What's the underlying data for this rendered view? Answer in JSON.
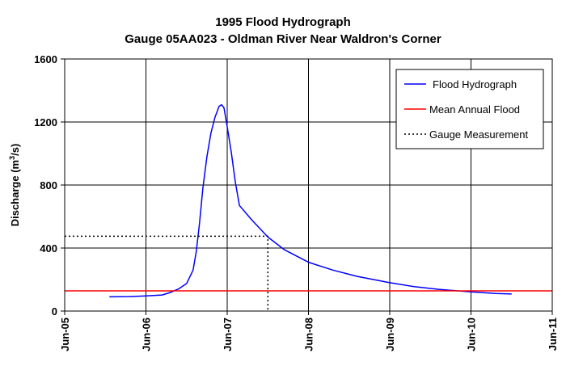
{
  "chart_data": {
    "type": "line",
    "title": "1995 Flood Hydrograph",
    "subtitle": "Gauge 05AA023 - Oldman River Near Waldron's Corner",
    "ylabel_main": "Discharge (m",
    "ylabel_sup": "3",
    "ylabel_tail": "/s)",
    "xlabel": "",
    "x_ticks": [
      "Jun-05",
      "Jun-06",
      "Jun-07",
      "Jun-08",
      "Jun-09",
      "Jun-10",
      "Jun-11"
    ],
    "y_ticks": [
      "0",
      "400",
      "800",
      "1200",
      "1600"
    ],
    "xlim": [
      5,
      11
    ],
    "ylim": [
      0,
      1600
    ],
    "grid": true,
    "legend_position": "top-right",
    "series": [
      {
        "name": "Flood Hydrograph",
        "color": "#0000ff",
        "style": "solid",
        "points": [
          [
            5.55,
            90
          ],
          [
            5.8,
            92
          ],
          [
            6.0,
            96
          ],
          [
            6.2,
            102
          ],
          [
            6.3,
            118
          ],
          [
            6.4,
            140
          ],
          [
            6.5,
            175
          ],
          [
            6.58,
            260
          ],
          [
            6.62,
            380
          ],
          [
            6.66,
            560
          ],
          [
            6.7,
            780
          ],
          [
            6.75,
            980
          ],
          [
            6.8,
            1130
          ],
          [
            6.85,
            1230
          ],
          [
            6.9,
            1300
          ],
          [
            6.93,
            1310
          ],
          [
            6.96,
            1290
          ],
          [
            7.0,
            1170
          ],
          [
            7.05,
            1010
          ],
          [
            7.1,
            820
          ],
          [
            7.15,
            670
          ],
          [
            7.3,
            580
          ],
          [
            7.5,
            470
          ],
          [
            7.7,
            390
          ],
          [
            8.0,
            310
          ],
          [
            8.3,
            260
          ],
          [
            8.6,
            220
          ],
          [
            9.0,
            180
          ],
          [
            9.3,
            155
          ],
          [
            9.6,
            138
          ],
          [
            10.0,
            122
          ],
          [
            10.3,
            112
          ],
          [
            10.5,
            108
          ]
        ]
      },
      {
        "name": "Mean Annual Flood",
        "color": "#ff0000",
        "style": "solid",
        "points": [
          [
            5,
            128
          ],
          [
            11,
            128
          ]
        ]
      },
      {
        "name": "Gauge Measurement",
        "color": "#000000",
        "style": "dotted",
        "points": [
          [
            5,
            475
          ],
          [
            7.5,
            475
          ],
          [
            7.5,
            0
          ]
        ]
      }
    ]
  }
}
